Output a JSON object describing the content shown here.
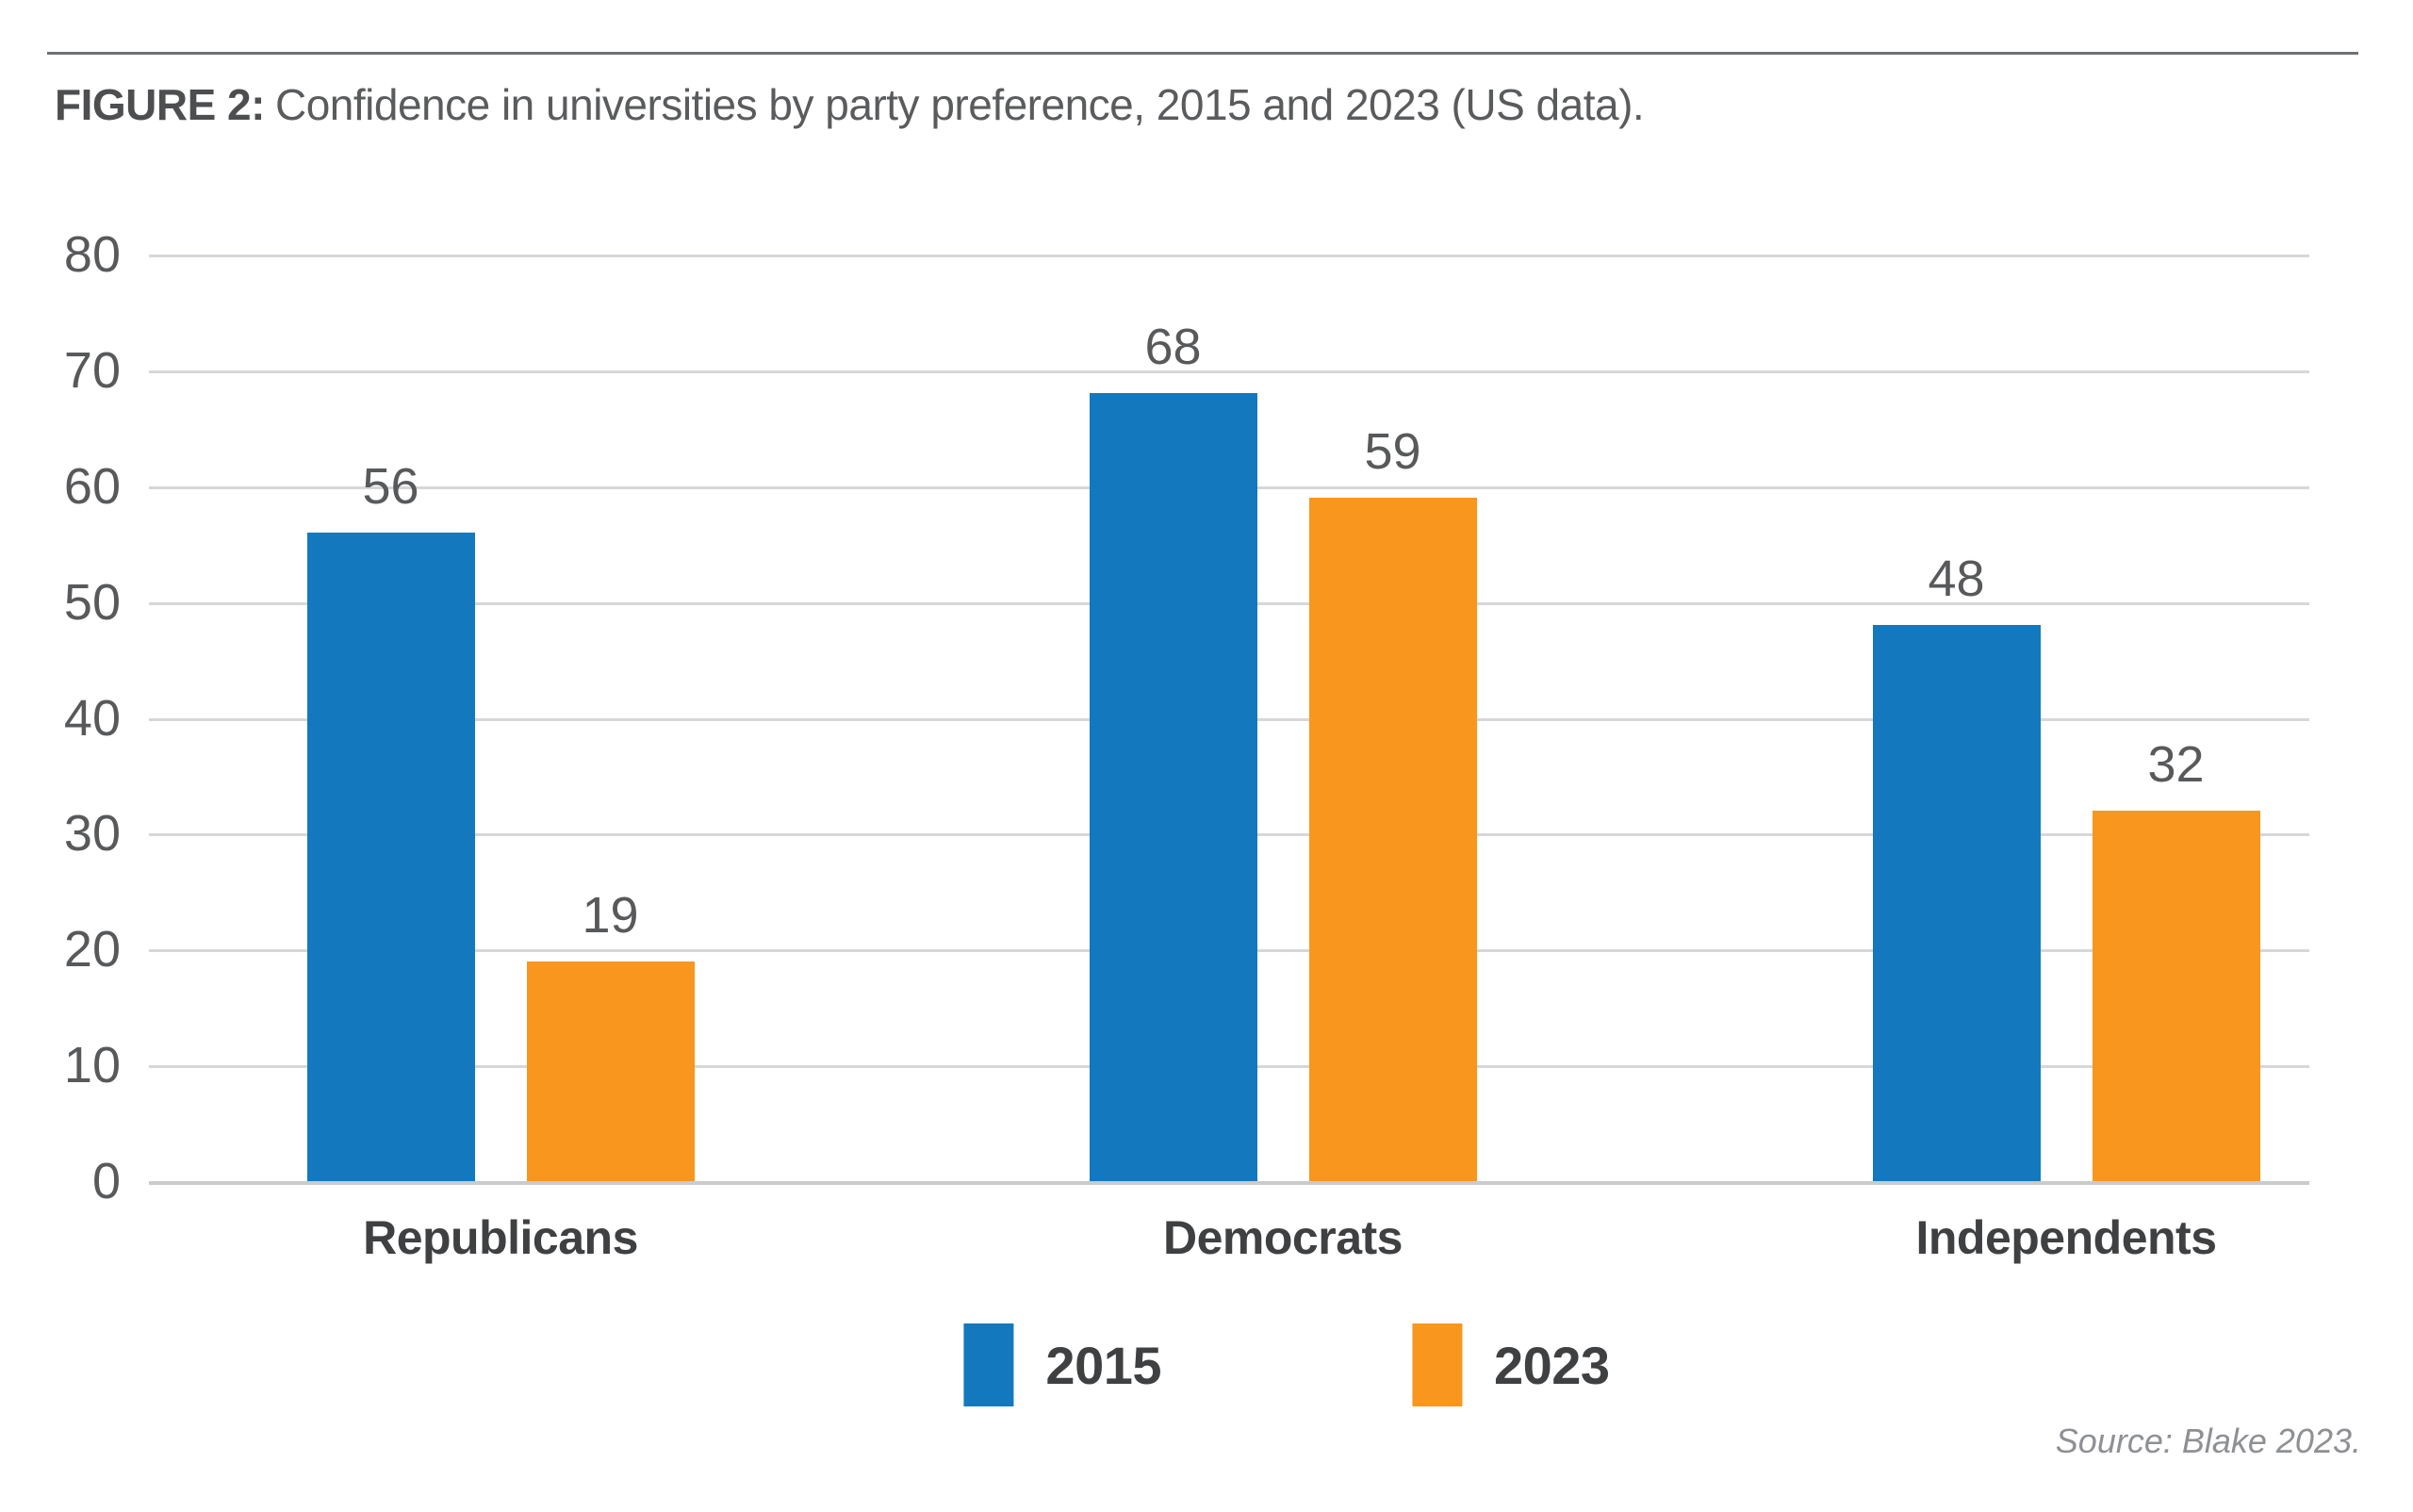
{
  "figure": {
    "label": "FIGURE 2:",
    "title": "Confidence in universities by party preference, 2015 and 2023 (US data).",
    "source": "Source: Blake 2023."
  },
  "chart_data": {
    "type": "bar",
    "title": "Confidence in universities by party preference, 2015 and 2023 (US data)",
    "categories": [
      "Republicans",
      "Democrats",
      "Independents"
    ],
    "series": [
      {
        "name": "2015",
        "color": "#1478BE",
        "values": [
          56,
          68,
          48
        ]
      },
      {
        "name": "2023",
        "color": "#F8961E",
        "values": [
          19,
          59,
          32
        ]
      }
    ],
    "ylim": [
      0,
      80
    ],
    "yticks": [
      0,
      10,
      20,
      30,
      40,
      50,
      60,
      70,
      80
    ],
    "grid": true,
    "value_labels": true,
    "legend_position": "bottom",
    "source": "Source: Blake 2023."
  },
  "colors": {
    "series_2015": "#1478BE",
    "series_2023": "#F8961E",
    "gridline": "#D6D7D9",
    "text_dark": "#3F4042",
    "text_gray": "#58595B",
    "source_gray": "#8E9093"
  }
}
